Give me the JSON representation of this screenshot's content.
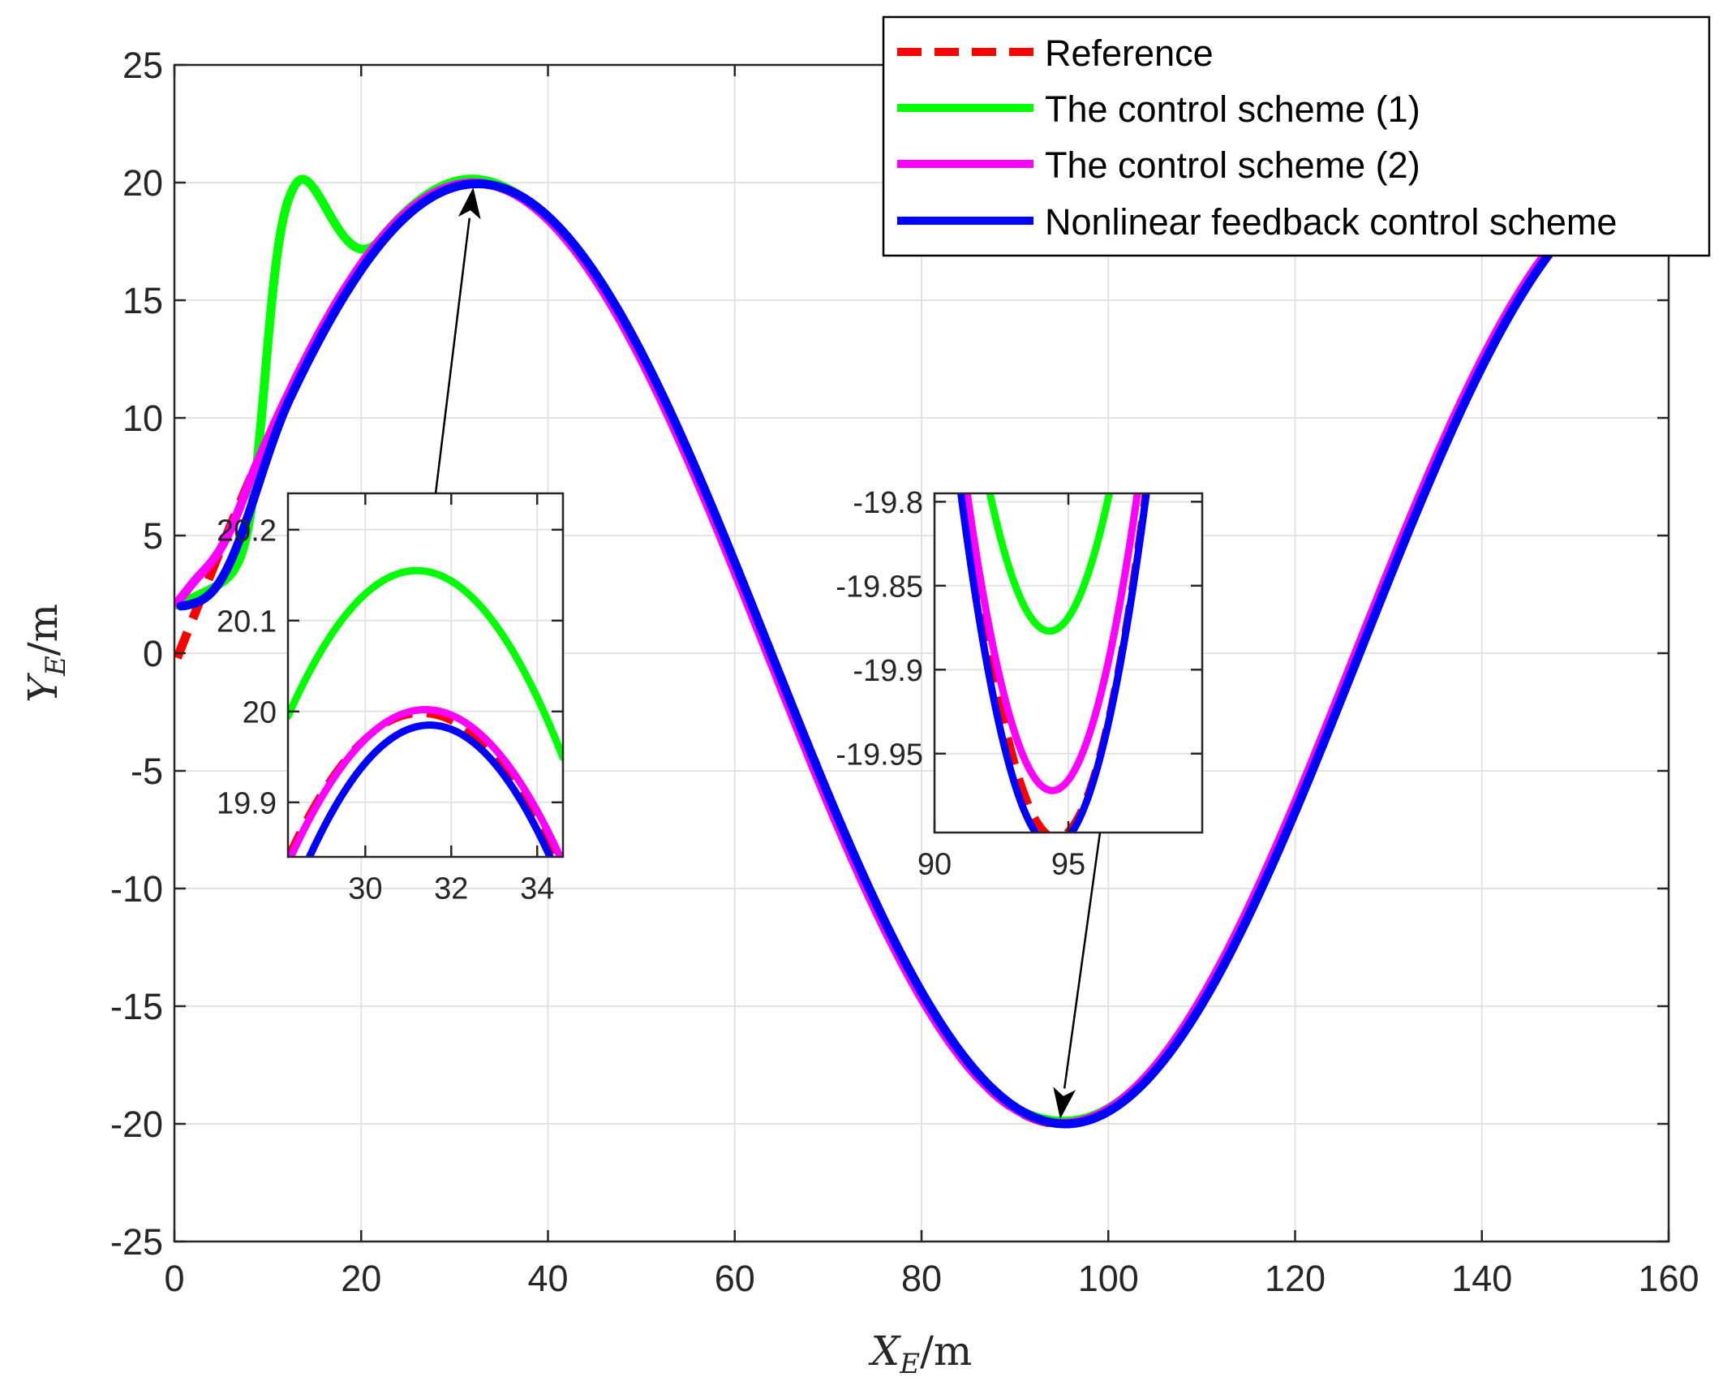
{
  "chart_data": {
    "type": "line",
    "main": {
      "xlabel": {
        "var": "X",
        "sub": "E",
        "unit": "/m"
      },
      "ylabel": {
        "var": "Y",
        "sub": "E",
        "unit": "/m"
      },
      "xlim": [
        0,
        160
      ],
      "ylim": [
        -25,
        25
      ],
      "xticks": [
        0,
        20,
        40,
        60,
        80,
        100,
        120,
        140,
        160
      ],
      "yticks": [
        25,
        20,
        15,
        10,
        5,
        0,
        -5,
        -10,
        -15,
        -20,
        -25
      ],
      "grid": true,
      "legend_position": "top-right"
    },
    "series": [
      {
        "name": "Reference",
        "color": "#ff0000",
        "style": "dashed"
      },
      {
        "name": "The control scheme (1)",
        "color": "#00ff00",
        "style": "solid"
      },
      {
        "name": "The control scheme (2)",
        "color": "#ff00ff",
        "style": "solid"
      },
      {
        "name": "Nonlinear feedback control scheme",
        "color": "#0000ff",
        "style": "solid"
      }
    ],
    "insets": [
      {
        "xlim": [
          28.2,
          34.6
        ],
        "ylim": [
          19.84,
          20.24
        ],
        "xticks": [
          30,
          32,
          34
        ],
        "yticks": [
          20.2,
          20.1,
          20,
          19.9
        ],
        "points_to": [
          32,
          20
        ]
      },
      {
        "xlim": [
          90,
          100
        ],
        "ylim": [
          -19.997,
          -19.795
        ],
        "xticks": [
          90,
          95
        ],
        "yticks": [
          -19.8,
          -19.85,
          -19.9,
          -19.95
        ],
        "points_to": [
          94.5,
          -20
        ]
      }
    ]
  }
}
